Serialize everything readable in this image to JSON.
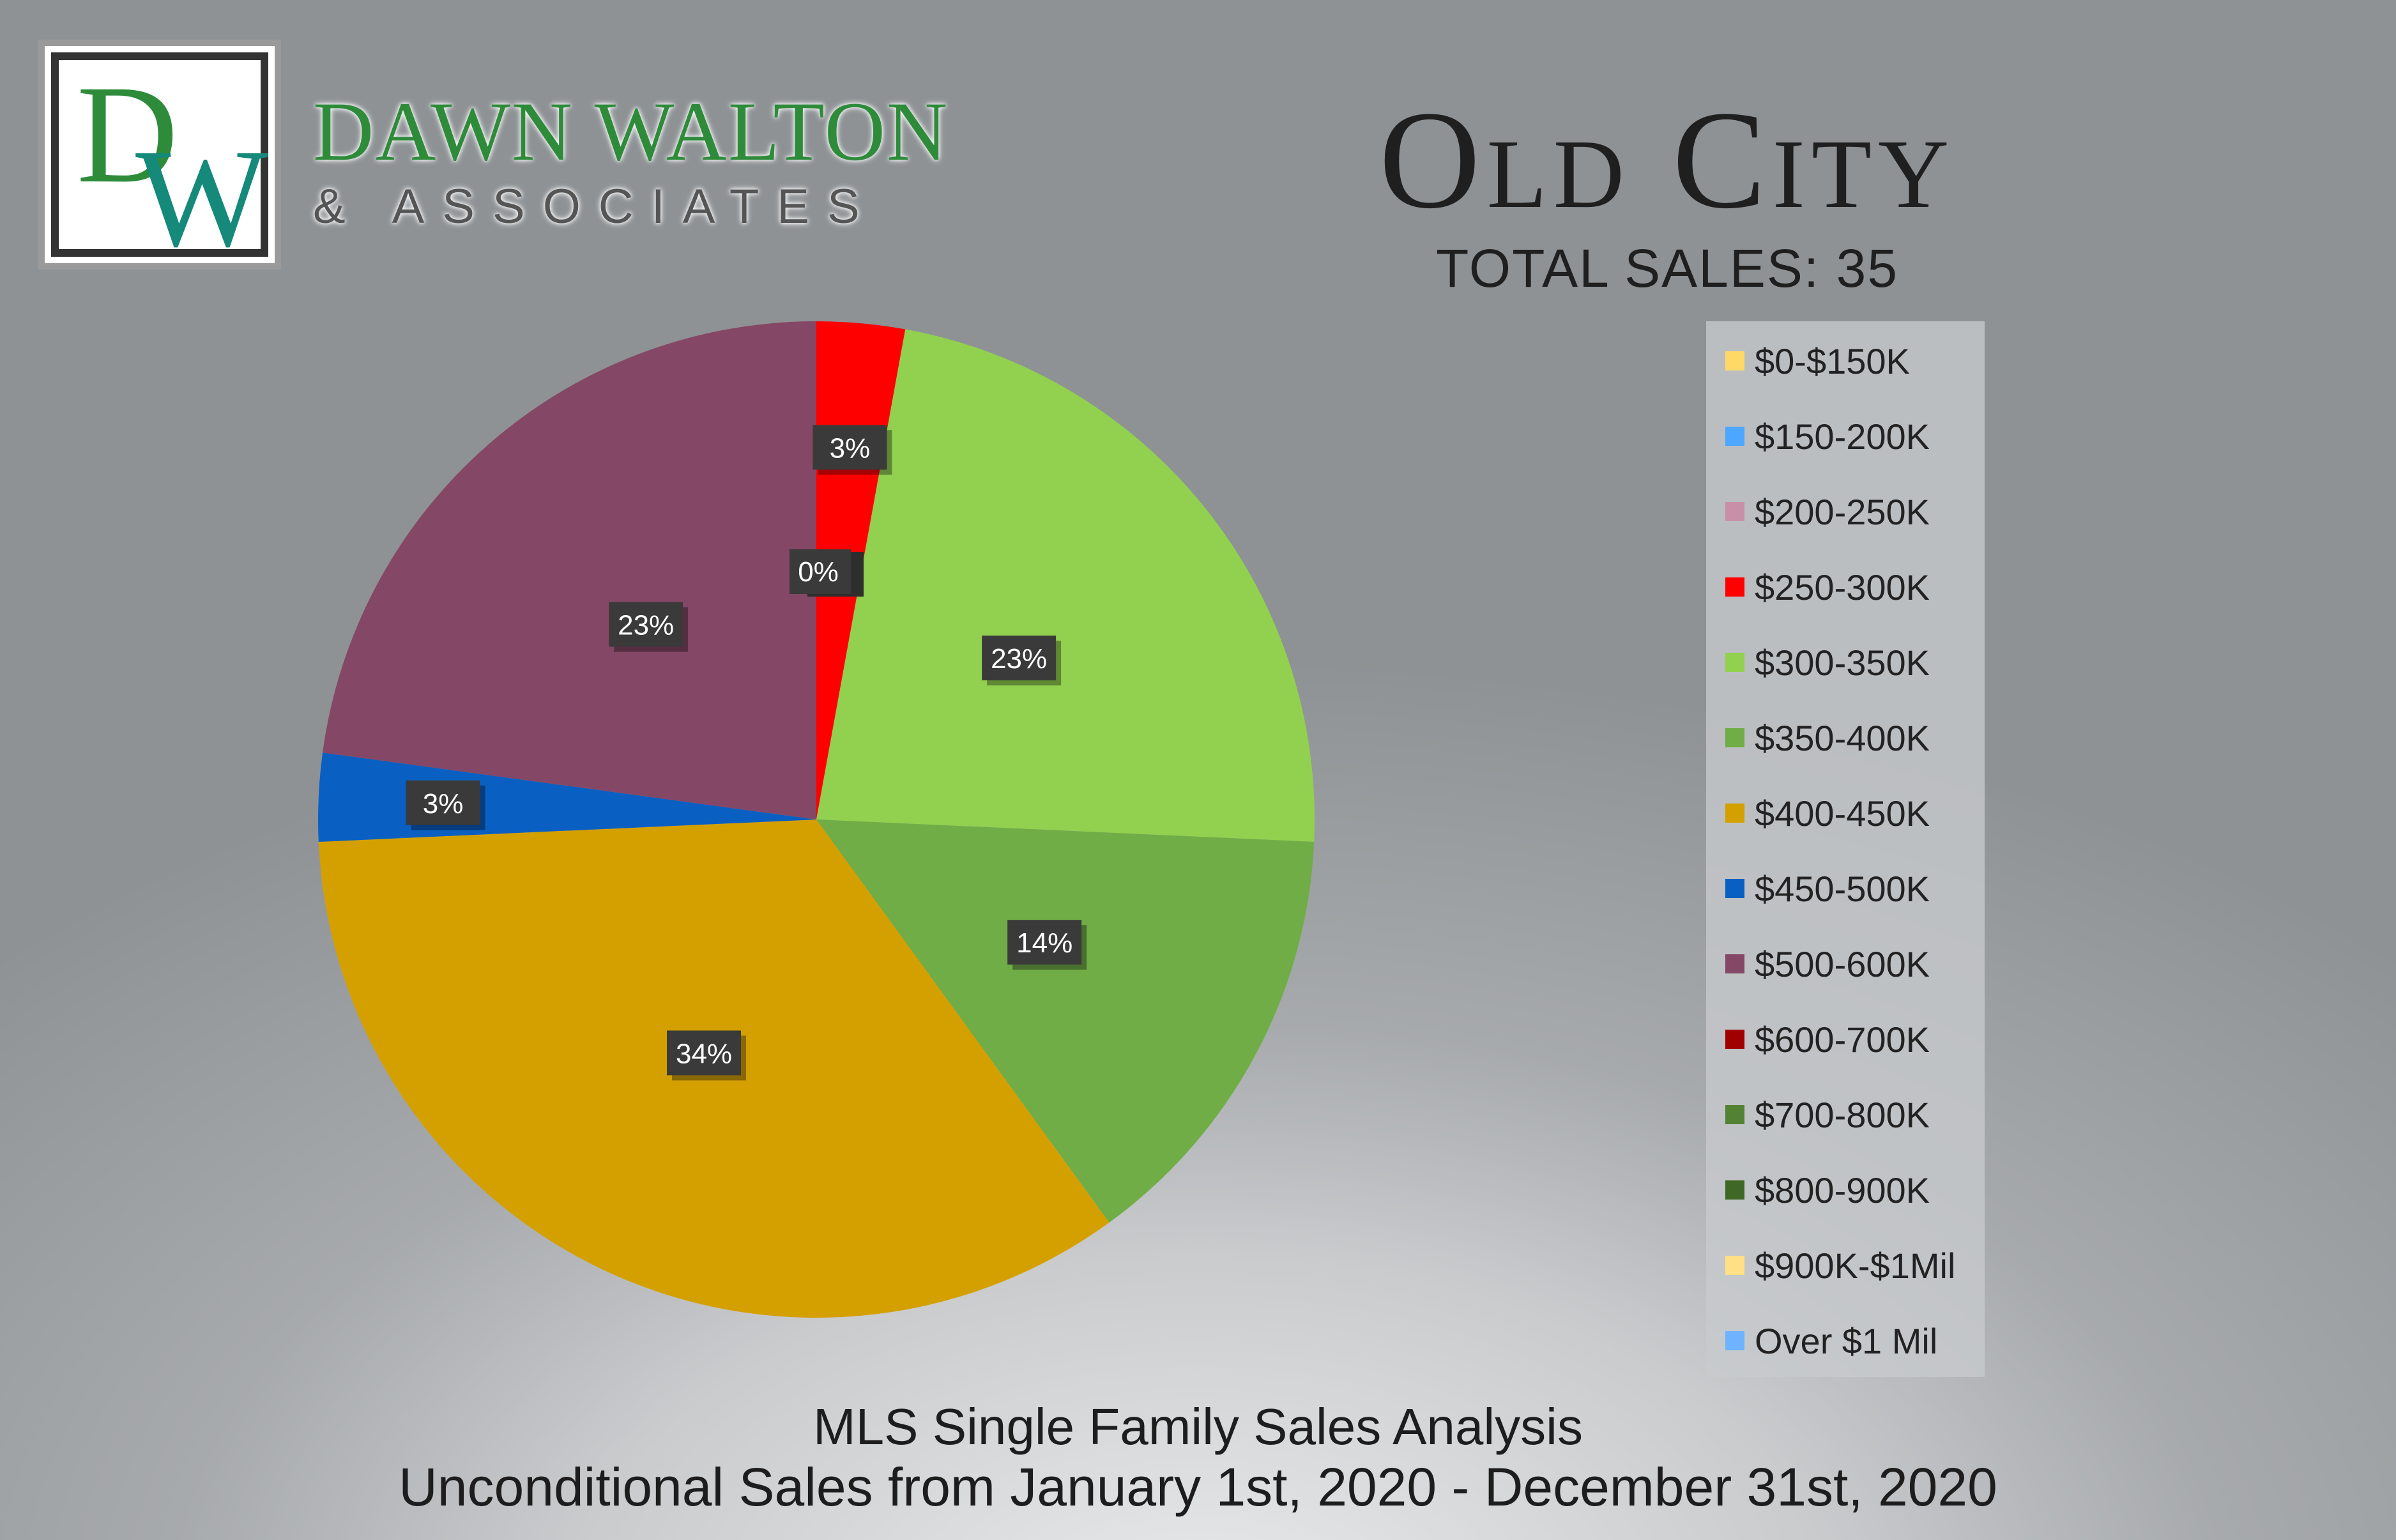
{
  "brand": {
    "monogram": "DW",
    "name": "DAWN WALTON",
    "sub": "& ASSOCIATES"
  },
  "header": {
    "city": "Old City",
    "total_sales": "TOTAL SALES: 35"
  },
  "footer": {
    "line1": "MLS Single Family Sales Analysis",
    "line2": "Unconditional Sales from January 1st, 2020 - December 31st, 2020"
  },
  "chart_data": {
    "type": "pie",
    "legend_position": "right",
    "categories": [
      "$0-$150K",
      "$150-200K",
      "$200-250K",
      "$250-300K",
      "$300-350K",
      "$350-400K",
      "$400-450K",
      "$450-500K",
      "$500-600K",
      "$600-700K",
      "$700-800K",
      "$800-900K",
      "$900K-$1Mil",
      "Over $1 Mil"
    ],
    "counts": [
      0,
      0,
      0,
      1,
      8,
      5,
      12,
      1,
      8,
      0,
      0,
      0,
      0,
      0
    ],
    "data_labels": [
      "0%",
      "0%",
      "0%",
      "3%",
      "23%",
      "14%",
      "34%",
      "3%",
      "23%",
      "0%",
      "0%",
      "0%",
      "0%",
      "0%"
    ],
    "colors": [
      "#ffd966",
      "#4da6ff",
      "#c98fa8",
      "#ff0000",
      "#92d050",
      "#70ad47",
      "#d4a000",
      "#0a5fc2",
      "#854766",
      "#a00000",
      "#548235",
      "#3f6826",
      "#ffe084",
      "#6fb3ff"
    ]
  }
}
